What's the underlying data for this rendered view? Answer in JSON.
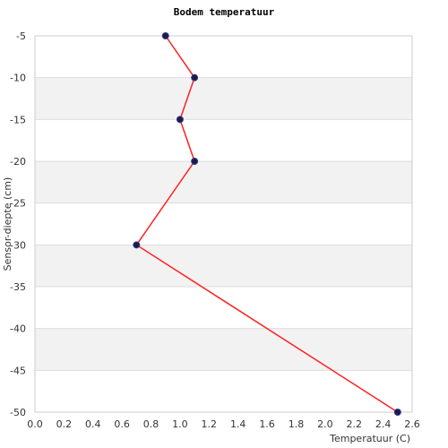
{
  "chart_data": {
    "type": "line",
    "title": "Bodem temperatuur",
    "xlabel": "Temperatuur (C)",
    "ylabel": "Sensor-diepte (cm)",
    "xlim": [
      0,
      2.6
    ],
    "ylim": [
      -50,
      -5
    ],
    "xticks": [
      0.0,
      0.2,
      0.4,
      0.6,
      0.8,
      1.0,
      1.2,
      1.4,
      1.6,
      1.8,
      2.0,
      2.2,
      2.4,
      2.6
    ],
    "xtick_labels": [
      "0.0",
      "0.2",
      "0.4",
      "0.6",
      "0.8",
      "1.0",
      "1.2",
      "1.4",
      "1.6",
      "1.8",
      "2.0",
      "2.2",
      "2.4",
      "2.6"
    ],
    "yticks": [
      -5,
      -10,
      -15,
      -20,
      -25,
      -30,
      -35,
      -40,
      -45,
      -50
    ],
    "ytick_labels": [
      "-5",
      "-10",
      "-15",
      "-20",
      "-25",
      "-30",
      "-35",
      "-40",
      "-45",
      "-50"
    ],
    "grid": true,
    "alternating_bands": true,
    "colors": {
      "line": "#ff2020",
      "marker": "#1a1a4a",
      "band": "#f2f2f2",
      "grid": "#dddddd"
    },
    "series": [
      {
        "x": [
          0.9,
          1.1,
          1.0,
          1.1,
          0.7,
          2.5
        ],
        "y": [
          -5,
          -10,
          -15,
          -20,
          -30,
          -50
        ]
      }
    ]
  }
}
